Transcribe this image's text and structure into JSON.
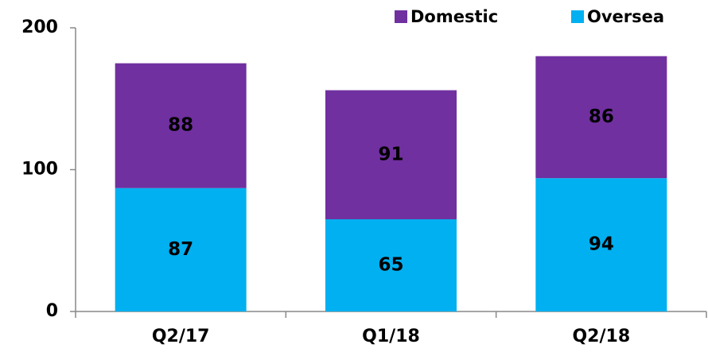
{
  "chart_data": {
    "type": "stacked_bar",
    "categories": [
      "Q2/17",
      "Q1/18",
      "Q2/18"
    ],
    "series": [
      {
        "name": "Domestic",
        "color": "#7030a0",
        "values": [
          88,
          91,
          86
        ]
      },
      {
        "name": "Oversea",
        "color": "#00b0f0",
        "values": [
          87,
          65,
          94
        ]
      }
    ],
    "ylim": [
      0,
      200
    ],
    "yticks": [
      0,
      100,
      200
    ],
    "grid": false,
    "legend": "top-right"
  }
}
